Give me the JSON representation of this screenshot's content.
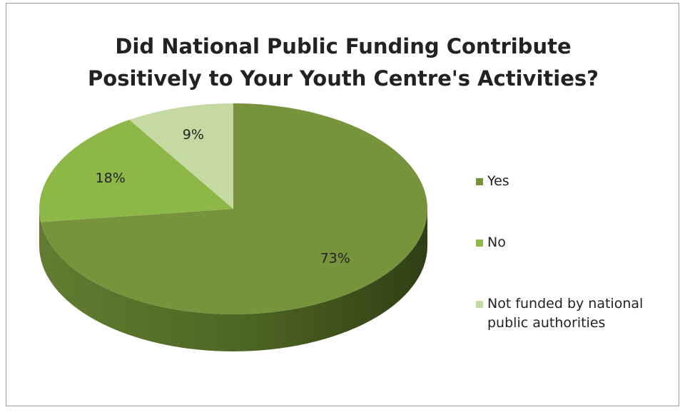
{
  "chart_data": {
    "type": "pie",
    "title_lines": [
      "Did National Public Funding Contribute",
      "Positively to Your Youth Centre's Activities?"
    ],
    "categories": [
      "Yes",
      "No",
      "Not funded by national public authorities"
    ],
    "values": [
      73,
      18,
      9
    ],
    "value_labels": [
      "73%",
      "18%",
      "9%"
    ],
    "legend_labels": [
      [
        "Yes"
      ],
      [
        "No"
      ],
      [
        "Not funded by national",
        "public authorities"
      ]
    ],
    "colors": [
      "#77933c",
      "#8db848",
      "#c5d9a2"
    ],
    "side_colors": [
      "#56702a",
      "#6b9034",
      "#a3b882"
    ],
    "legend_position": "right",
    "style": "3d"
  }
}
